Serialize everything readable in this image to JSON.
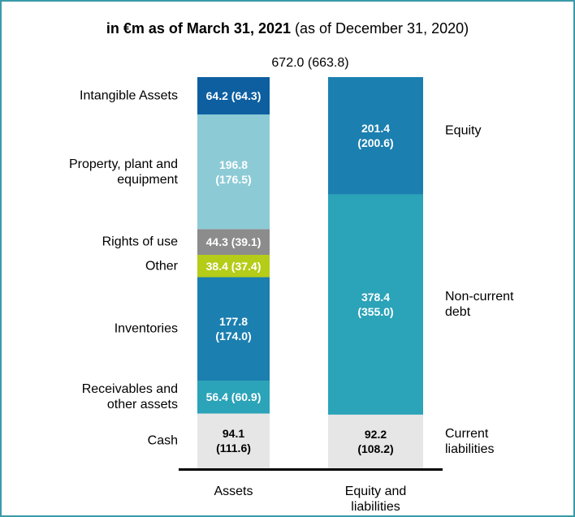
{
  "chart_data": {
    "type": "stacked_bar",
    "title": "in €m as of March 31, 2021",
    "subtitle": "(as of December 31, 2020)",
    "total_label": "672.0 (663.8)",
    "categories": [
      "Assets",
      "Equity and liabilities"
    ],
    "ylim": [
      0,
      672
    ],
    "series": [
      {
        "name": "Cash",
        "color": "#e6e6e6",
        "values": [
          94.1,
          null
        ],
        "value_labels": [
          "94.1 (111.6)",
          null
        ]
      },
      {
        "name": "Receivables and other assets",
        "color": "#2ba3b8",
        "values": [
          56.4,
          null
        ],
        "value_labels": [
          "56.4 (60.9)",
          null
        ]
      },
      {
        "name": "Inventories",
        "color": "#1b7fb0",
        "values": [
          177.8,
          null
        ],
        "value_labels": [
          "177.8 (174.0)",
          null
        ]
      },
      {
        "name": "Other",
        "color": "#b5cc18",
        "values": [
          38.4,
          null
        ],
        "value_labels": [
          "38.4 (37.4)",
          null
        ]
      },
      {
        "name": "Rights of use",
        "color": "#8c8c8c",
        "values": [
          44.3,
          null
        ],
        "value_labels": [
          "44.3 (39.1)",
          null
        ]
      },
      {
        "name": "Property, plant and equipment",
        "color": "#8ccbd6",
        "values": [
          196.8,
          null
        ],
        "value_labels": [
          "196.8 (176.5)",
          null
        ]
      },
      {
        "name": "Intangible Assets",
        "color": "#0d5fa0",
        "values": [
          64.2,
          null
        ],
        "value_labels": [
          "64.2 (64.3)",
          null
        ]
      },
      {
        "name": "Current liabilities",
        "color": "#e6e6e6",
        "values": [
          null,
          92.2
        ],
        "value_labels": [
          null,
          "92.2 (108.2)"
        ]
      },
      {
        "name": "Non-current debt",
        "color": "#2ba3b8",
        "values": [
          null,
          378.4
        ],
        "value_labels": [
          null,
          "378.4 (355.0)"
        ]
      },
      {
        "name": "Equity",
        "color": "#1b7fb0",
        "values": [
          null,
          201.4
        ],
        "value_labels": [
          null,
          "201.4 (200.6)"
        ]
      }
    ]
  }
}
